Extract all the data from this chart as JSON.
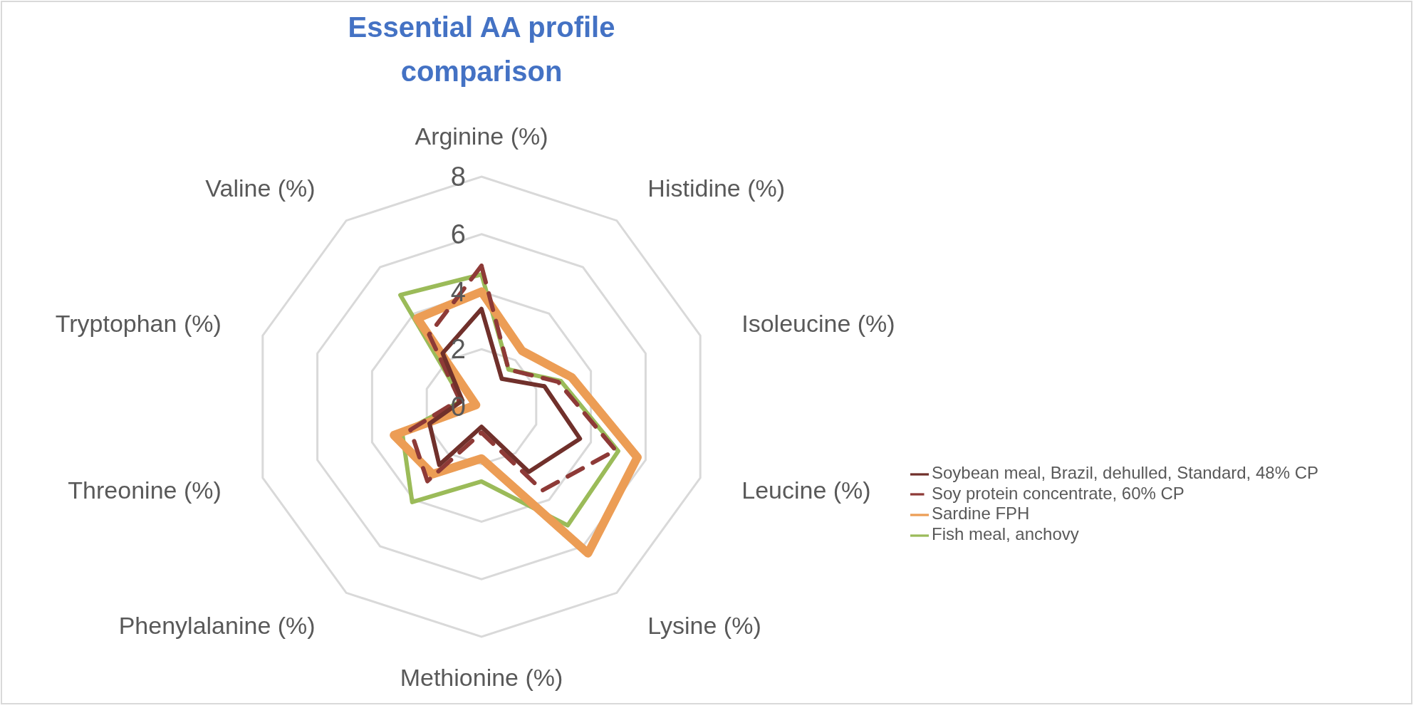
{
  "chart_data": {
    "type": "radar",
    "title": "Essential AA profile comparison",
    "categories": [
      "Arginine (%)",
      "Histidine (%)",
      "Isoleucine (%)",
      "Leucine (%)",
      "Lysine (%)",
      "Methionine (%)",
      "Phenylalanine (%)",
      "Threonine (%)",
      "Tryptophan (%)",
      "Valine (%)"
    ],
    "series": [
      {
        "name": "Soybean meal, Brazil, dehulled, Standard, 48% CP",
        "color": "#70302b",
        "values": [
          3.4,
          1.2,
          2.3,
          3.6,
          2.8,
          0.7,
          2.5,
          1.9,
          0.7,
          2.3
        ]
      },
      {
        "name": "Soy protein concentrate, 60% CP",
        "color": "#8e3a37",
        "line_style": "dashed",
        "values": [
          4.9,
          1.6,
          2.8,
          4.9,
          3.6,
          0.9,
          3.2,
          2.6,
          0.8,
          3.1
        ]
      },
      {
        "name": "Sardine FPH",
        "color": "#ec9d55",
        "values": [
          4.0,
          2.4,
          3.3,
          5.7,
          6.3,
          1.8,
          2.9,
          3.2,
          0.2,
          3.8
        ]
      },
      {
        "name": "Fish meal, anchovy",
        "color": "#9bbb59",
        "values": [
          4.6,
          1.6,
          2.9,
          5.0,
          5.1,
          2.6,
          4.1,
          2.9,
          0.7,
          4.8
        ]
      }
    ],
    "ylim": [
      0,
      8
    ],
    "yticks": [
      0,
      2,
      4,
      6,
      8
    ],
    "grid": true,
    "legend": "right",
    "line_style": "solid"
  }
}
